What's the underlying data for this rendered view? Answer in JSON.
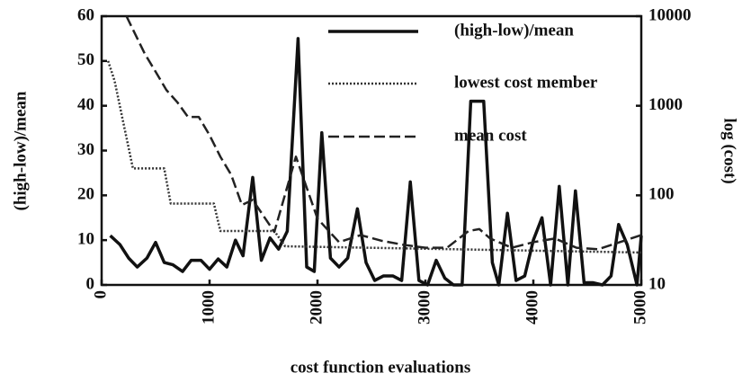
{
  "chart_data": {
    "type": "line",
    "xlabel": "cost function evaluations",
    "ylabel": "(high-low)/mean",
    "y2label": "log (cost)",
    "xlim": [
      0,
      5000
    ],
    "xticks": [
      0,
      1000,
      2000,
      3000,
      4000,
      5000
    ],
    "ylim": [
      0,
      60
    ],
    "yticks": [
      0,
      10,
      20,
      30,
      40,
      50,
      60
    ],
    "y2lim": [
      10,
      10000
    ],
    "y2ticks": [
      10,
      100,
      1000,
      10000
    ],
    "y2log": true,
    "legend": "top-right",
    "series": [
      {
        "name": "(high-low)/mean",
        "color": "#111",
        "style": "solid",
        "axis": "y",
        "x": [
          80,
          170,
          250,
          330,
          420,
          500,
          580,
          660,
          750,
          830,
          920,
          1000,
          1080,
          1160,
          1240,
          1310,
          1400,
          1480,
          1560,
          1640,
          1720,
          1820,
          1900,
          1970,
          2040,
          2120,
          2200,
          2280,
          2370,
          2450,
          2530,
          2610,
          2700,
          2780,
          2860,
          2940,
          3020,
          3100,
          3180,
          3260,
          3340,
          3420,
          3540,
          3620,
          3680,
          3760,
          3840,
          3920,
          4000,
          4080,
          4160,
          4240,
          4320,
          4390,
          4470,
          4550,
          4640,
          4720,
          4790,
          4870,
          4960,
          5000
        ],
        "values": [
          11,
          9,
          6,
          4,
          6,
          9.5,
          5,
          4.5,
          3,
          5.5,
          5.5,
          3.5,
          5.8,
          4,
          10,
          6.5,
          24,
          5.5,
          10.5,
          8,
          12,
          55,
          4,
          3,
          34,
          6,
          4,
          6,
          17,
          5,
          1,
          2,
          2,
          1,
          23,
          1,
          0,
          5.5,
          1.5,
          0,
          0,
          41,
          41,
          5,
          0,
          16,
          1,
          2,
          10,
          15,
          0,
          22,
          0,
          21,
          0.5,
          0.5,
          0,
          2,
          13.5,
          9,
          0,
          11
        ]
      },
      {
        "name": "lowest cost member",
        "color": "#333",
        "style": "dotted",
        "axis": "y2",
        "x": [
          60,
          120,
          190,
          290,
          580,
          640,
          1040,
          1100,
          1600,
          1700,
          5000
        ],
        "values": [
          3160,
          1900,
          750,
          200,
          200,
          81,
          81,
          40,
          40,
          27,
          23
        ]
      },
      {
        "name": "mean cost",
        "color": "#222",
        "style": "dashed",
        "axis": "y2",
        "x": [
          230,
          400,
          500,
          600,
          700,
          800,
          900,
          1000,
          1100,
          1200,
          1300,
          1400,
          1600,
          1800,
          2000,
          2200,
          2400,
          2600,
          2800,
          3000,
          3200,
          3400,
          3500,
          3600,
          3800,
          4000,
          4200,
          4400,
          4600,
          4800,
          5000
        ],
        "values": [
          10000,
          3800,
          2400,
          1500,
          1100,
          750,
          750,
          470,
          270,
          170,
          78,
          89,
          39,
          270,
          55,
          30,
          36,
          31,
          28,
          26,
          26,
          40,
          42,
          33,
          26,
          30,
          33,
          26,
          25,
          30,
          36
        ]
      }
    ]
  }
}
